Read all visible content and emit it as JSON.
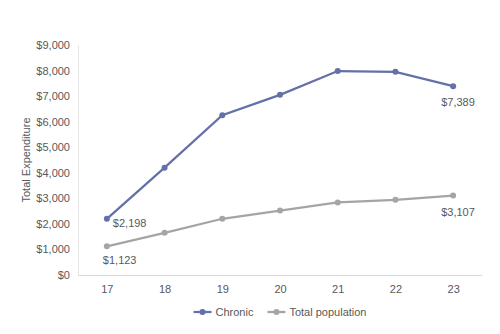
{
  "chart_data": {
    "type": "line",
    "y_label": "Total Expenditure",
    "categories": [
      "17",
      "18",
      "19",
      "20",
      "21",
      "22",
      "23"
    ],
    "series": [
      {
        "name": "Chronic",
        "color": "#6470a8",
        "marker": "circle",
        "line_style": "solid",
        "values": [
          2198,
          4200,
          6250,
          7050,
          7980,
          7950,
          7389
        ],
        "value_labels": [
          "$2,198",
          null,
          null,
          null,
          null,
          null,
          "$7,389"
        ]
      },
      {
        "name": "Total population",
        "color": "#a5a5a5",
        "marker": "circle",
        "line_style": "solid",
        "values": [
          1123,
          1650,
          2200,
          2520,
          2840,
          2940,
          3107
        ],
        "value_labels": [
          "$1,123",
          null,
          null,
          null,
          null,
          null,
          "$3,107"
        ]
      }
    ],
    "ylim": [
      0,
      9000
    ],
    "yticks": [
      {
        "value": 0,
        "label": "$0"
      },
      {
        "value": 1000,
        "label": "$1,000"
      },
      {
        "value": 2000,
        "label": "$2,000"
      },
      {
        "value": 3000,
        "label": "$3,000"
      },
      {
        "value": 4000,
        "label": "$4,000"
      },
      {
        "value": 5000,
        "label": "$5,000"
      },
      {
        "value": 6000,
        "label": "$6,000"
      },
      {
        "value": 7000,
        "label": "$7,000"
      },
      {
        "value": 8000,
        "label": "$8,000"
      },
      {
        "value": 9000,
        "label": "$9,000"
      }
    ],
    "grid": false,
    "legend": "bottom",
    "data_labels": true
  }
}
